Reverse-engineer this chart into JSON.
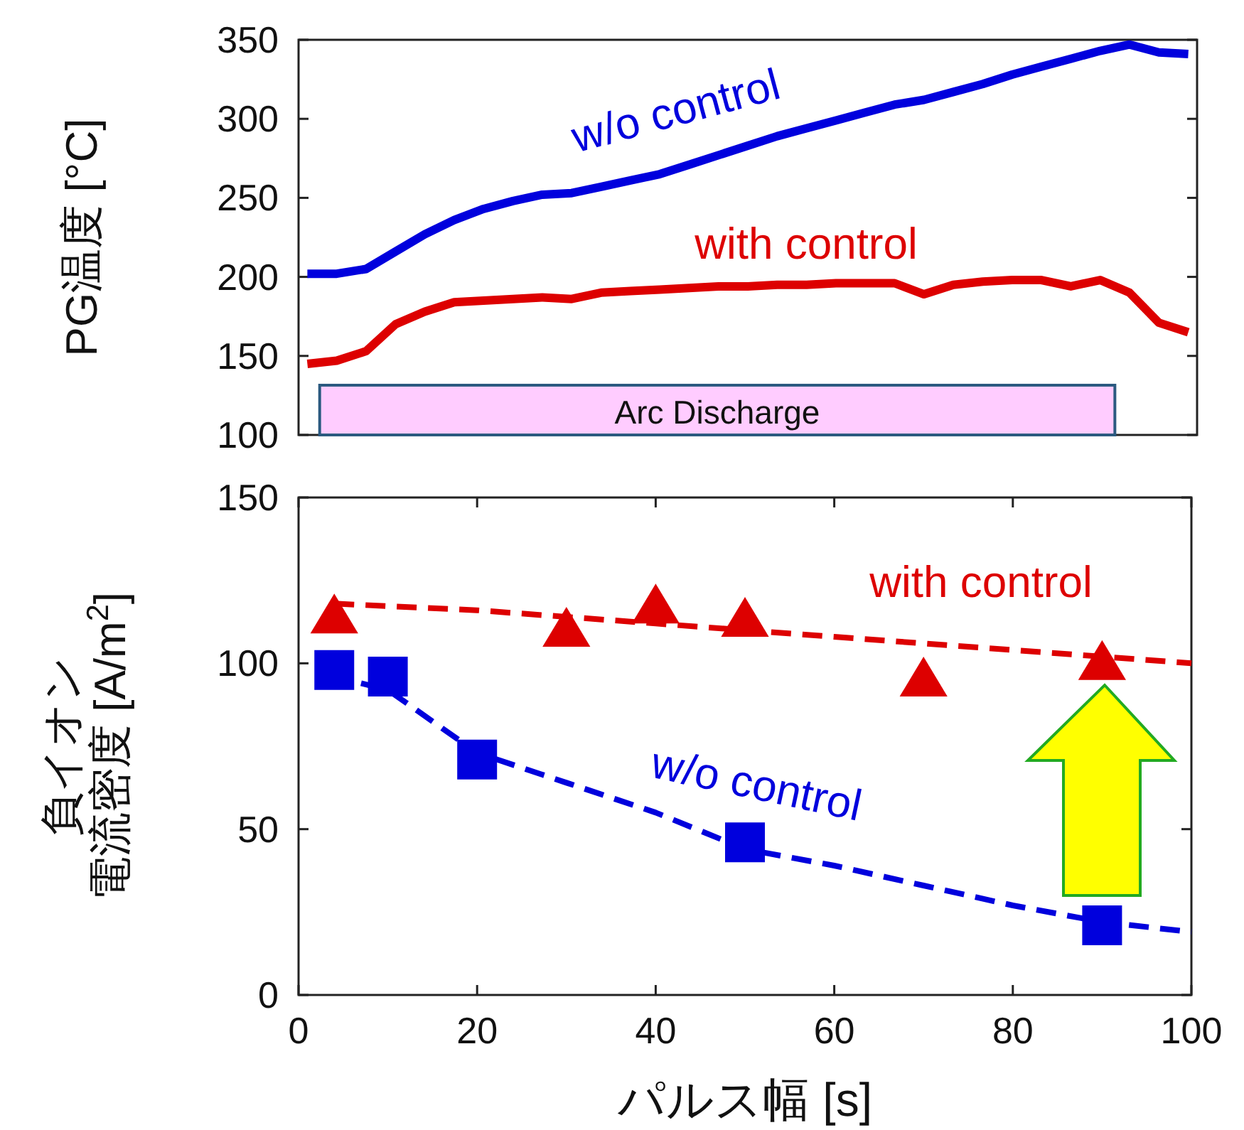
{
  "chart_data": [
    {
      "type": "line",
      "ylabel": "PG温度 [°C]",
      "categories": [
        null,
        null,
        null,
        null,
        null,
        null,
        null,
        null,
        null,
        null,
        null,
        null,
        null,
        null,
        null,
        null,
        null,
        null,
        null,
        null,
        null,
        null,
        null,
        null,
        null,
        null,
        null,
        null,
        null,
        null,
        null
      ],
      "ylim": [
        100,
        350
      ],
      "yticks": [
        100,
        150,
        200,
        250,
        300,
        350
      ],
      "grid": false,
      "annotations": [
        "Arc Discharge"
      ],
      "series": [
        {
          "name": "w/o control",
          "color": "#0000dd",
          "values": [
            202,
            202,
            205,
            216,
            227,
            236,
            243,
            248,
            252,
            253,
            257,
            261,
            265,
            271,
            277,
            283,
            289,
            294,
            299,
            304,
            309,
            312,
            317,
            322,
            328,
            333,
            338,
            343,
            347,
            342,
            341
          ]
        },
        {
          "name": "with control",
          "color": "#dd0000",
          "values": [
            145,
            147,
            153,
            170,
            178,
            184,
            185,
            186,
            187,
            186,
            190,
            191,
            192,
            193,
            194,
            194,
            195,
            195,
            196,
            196,
            196,
            189,
            195,
            197,
            198,
            198,
            194,
            198,
            190,
            171,
            165
          ]
        }
      ]
    },
    {
      "type": "scatter",
      "ylabel": "負イオン電流密度 [A/m$^{2}$]",
      "xlabel": "パルス幅 [s]",
      "xlim": [
        0,
        100
      ],
      "xticks": [
        0,
        20,
        40,
        60,
        80,
        100
      ],
      "ylim": [
        0,
        150
      ],
      "yticks": [
        0,
        50,
        100,
        150
      ],
      "grid": false,
      "series": [
        {
          "name": "with control",
          "color": "#dd0000",
          "marker": "triangle",
          "x": [
            4,
            30,
            40,
            50,
            70,
            90
          ],
          "values": [
            115,
            111,
            118,
            114,
            96,
            101
          ]
        },
        {
          "name": "w/o control",
          "color": "#0000dd",
          "marker": "square",
          "x": [
            4,
            10,
            20,
            50,
            90
          ],
          "values": [
            98,
            96,
            71,
            46,
            21
          ]
        },
        {
          "type": "line",
          "color": "#dd0000",
          "line_style": "dashed",
          "marker": "none",
          "x": [
            4,
            20,
            40,
            60,
            80,
            100
          ],
          "values": [
            118,
            116,
            112,
            108,
            104,
            100
          ]
        },
        {
          "type": "line",
          "color": "#0000dd",
          "line_style": "dashed",
          "marker": "none",
          "x": [
            7,
            10,
            20,
            30,
            40,
            50,
            60,
            70,
            80,
            90,
            100
          ],
          "values": [
            94,
            92,
            73,
            64,
            55,
            44,
            39,
            33,
            27,
            22,
            19
          ]
        }
      ]
    }
  ]
}
